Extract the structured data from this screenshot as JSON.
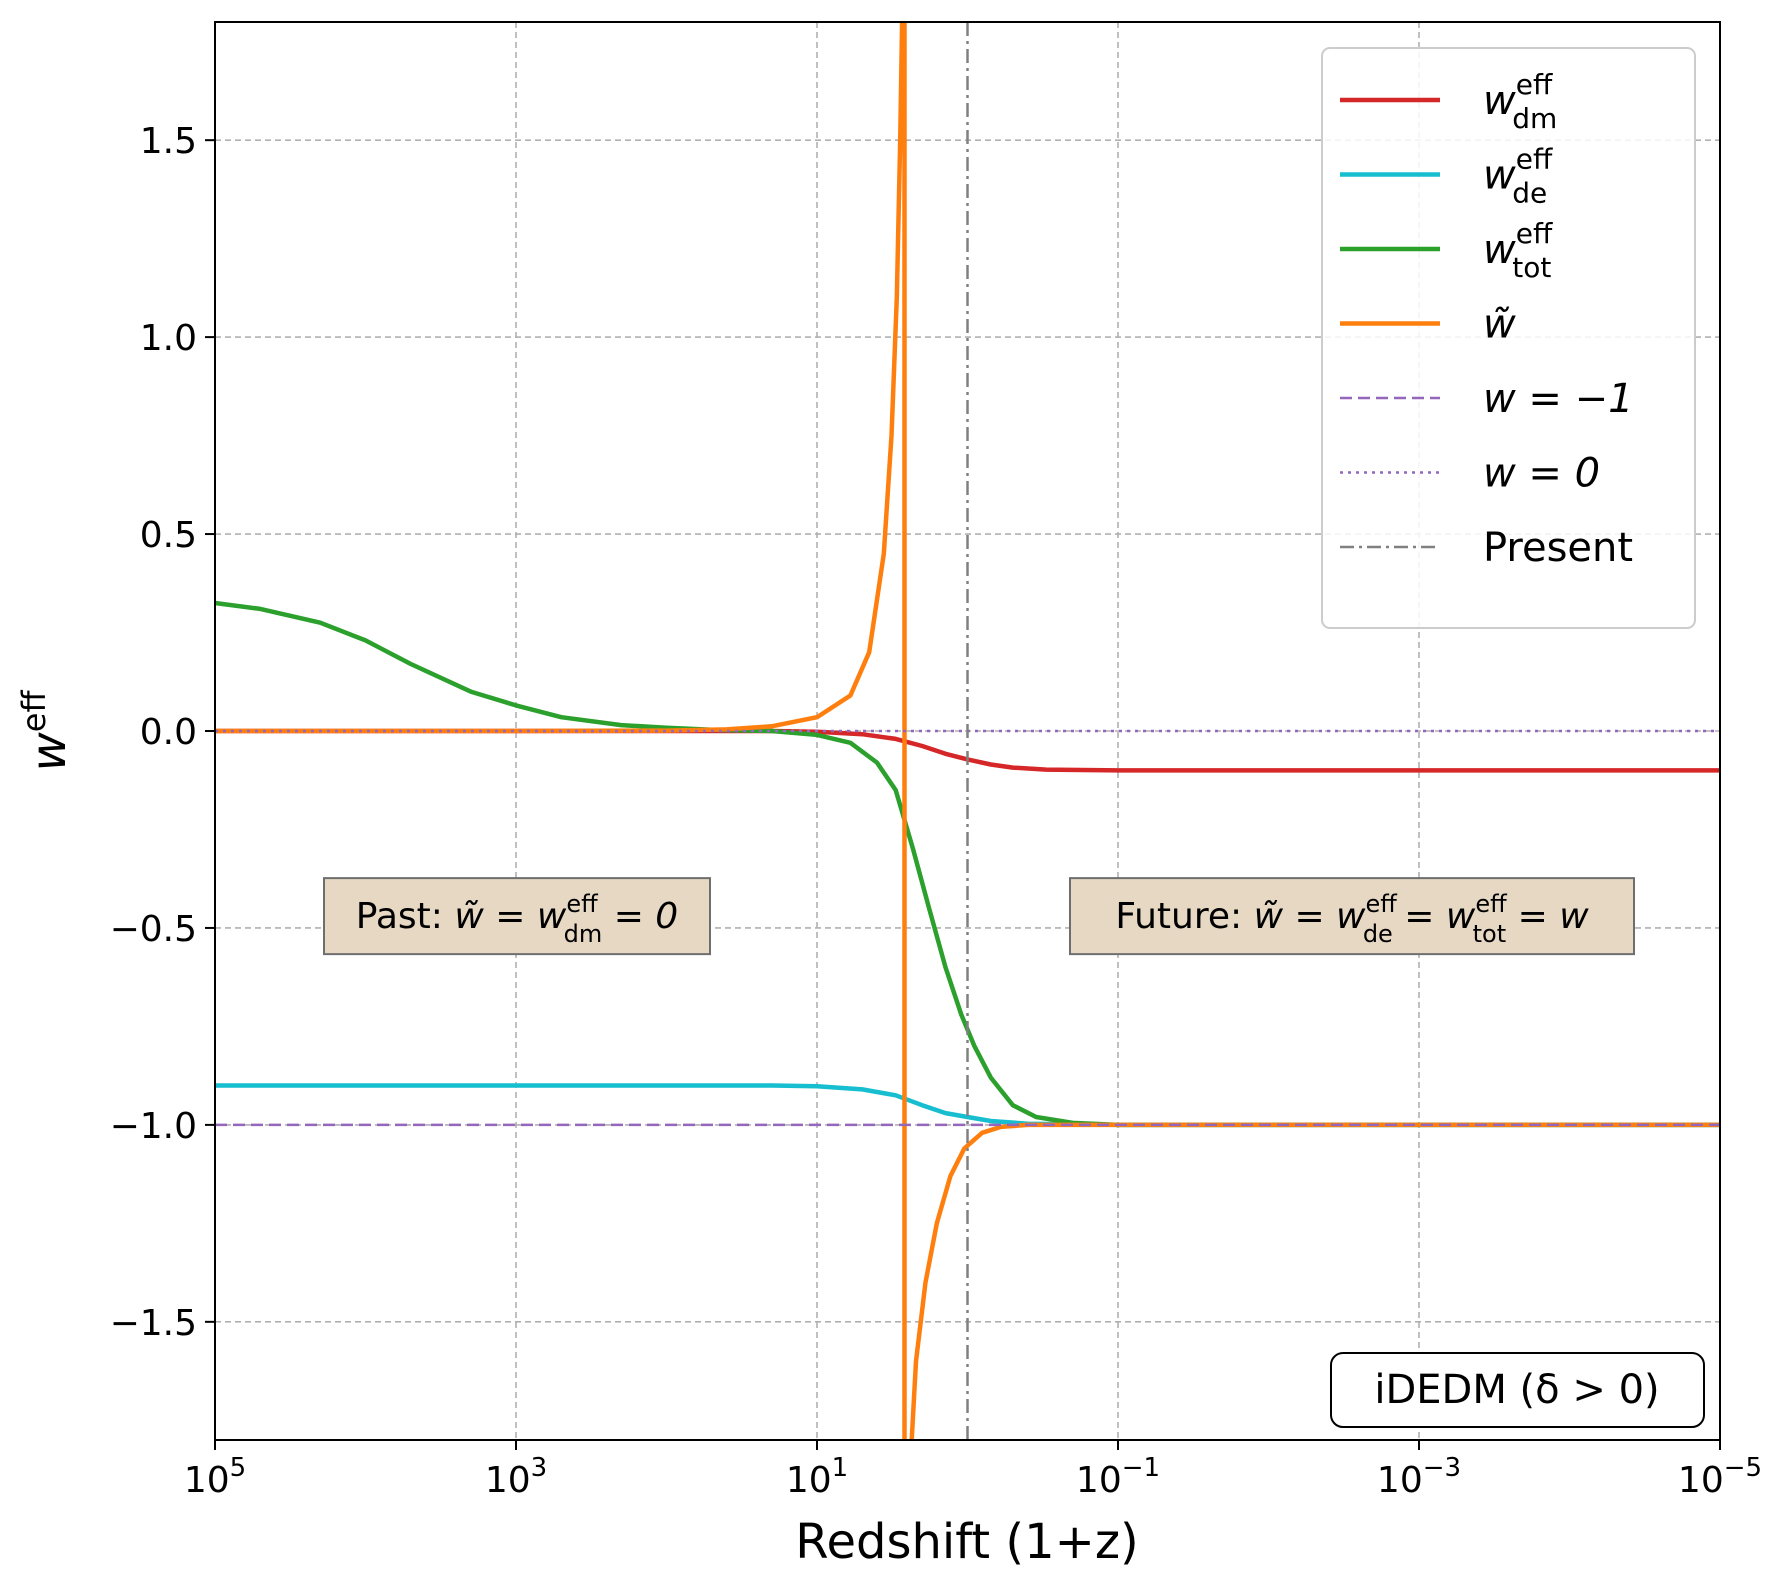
{
  "chart_data": {
    "type": "line",
    "x_axis": {
      "label": "Redshift (1+z)",
      "scale": "log",
      "reversed": true,
      "range": [
        100000,
        1e-05
      ],
      "ticks": [
        {
          "value": 100000,
          "base": "10",
          "exp": "5"
        },
        {
          "value": 1000,
          "base": "10",
          "exp": "3"
        },
        {
          "value": 10,
          "base": "10",
          "exp": "1"
        },
        {
          "value": 0.1,
          "base": "10",
          "exp": "−1"
        },
        {
          "value": 0.001,
          "base": "10",
          "exp": "−3"
        },
        {
          "value": 1e-05,
          "base": "10",
          "exp": "−5"
        }
      ]
    },
    "y_axis": {
      "label_base": "w",
      "label_sup": "eff",
      "range": [
        -1.8,
        1.8
      ],
      "ticks": [
        {
          "value": 1.5,
          "label": "1.5"
        },
        {
          "value": 1.0,
          "label": "1.0"
        },
        {
          "value": 0.5,
          "label": "0.5"
        },
        {
          "value": 0.0,
          "label": "0.0"
        },
        {
          "value": -0.5,
          "label": "−0.5"
        },
        {
          "value": -1.0,
          "label": "−1.0"
        },
        {
          "value": -1.5,
          "label": "−1.5"
        }
      ]
    },
    "grid": true,
    "legend_position": "top-right",
    "series": [
      {
        "key": "w_dm",
        "color": "#d62728",
        "style": "solid",
        "legend": {
          "base": "w",
          "sup": "eff",
          "sub": "dm"
        },
        "points": [
          [
            100000,
            0.0
          ],
          [
            1000,
            0.0
          ],
          [
            20,
            0.0
          ],
          [
            10,
            -0.002
          ],
          [
            5,
            -0.008
          ],
          [
            3,
            -0.02
          ],
          [
            2,
            -0.038
          ],
          [
            1.4,
            -0.058
          ],
          [
            1,
            -0.072
          ],
          [
            0.7,
            -0.085
          ],
          [
            0.5,
            -0.093
          ],
          [
            0.3,
            -0.098
          ],
          [
            0.1,
            -0.1
          ],
          [
            1e-05,
            -0.1
          ]
        ]
      },
      {
        "key": "w_de",
        "color": "#17becf",
        "style": "solid",
        "legend": {
          "base": "w",
          "sup": "eff",
          "sub": "de"
        },
        "points": [
          [
            100000,
            -0.9
          ],
          [
            100,
            -0.9
          ],
          [
            20,
            -0.9
          ],
          [
            10,
            -0.902
          ],
          [
            5,
            -0.91
          ],
          [
            3,
            -0.925
          ],
          [
            2,
            -0.95
          ],
          [
            1.4,
            -0.97
          ],
          [
            1,
            -0.98
          ],
          [
            0.7,
            -0.99
          ],
          [
            0.4,
            -0.997
          ],
          [
            0.1,
            -1.0
          ],
          [
            1e-05,
            -1.0
          ]
        ]
      },
      {
        "key": "w_tot",
        "color": "#2ca02c",
        "style": "solid",
        "legend": {
          "base": "w",
          "sup": "eff",
          "sub": "tot"
        },
        "points": [
          [
            100000,
            0.325
          ],
          [
            50000,
            0.31
          ],
          [
            20000,
            0.275
          ],
          [
            10000,
            0.23
          ],
          [
            5000,
            0.17
          ],
          [
            2000,
            0.1
          ],
          [
            1000,
            0.065
          ],
          [
            500,
            0.035
          ],
          [
            200,
            0.015
          ],
          [
            100,
            0.008
          ],
          [
            50,
            0.003
          ],
          [
            20,
            0.0
          ],
          [
            10,
            -0.01
          ],
          [
            6,
            -0.03
          ],
          [
            4,
            -0.08
          ],
          [
            3,
            -0.15
          ],
          [
            2.3,
            -0.3
          ],
          [
            1.8,
            -0.45
          ],
          [
            1.4,
            -0.6
          ],
          [
            1.1,
            -0.72
          ],
          [
            0.9,
            -0.8
          ],
          [
            0.7,
            -0.88
          ],
          [
            0.5,
            -0.95
          ],
          [
            0.35,
            -0.98
          ],
          [
            0.2,
            -0.995
          ],
          [
            0.1,
            -1.0
          ],
          [
            1e-05,
            -1.0
          ]
        ]
      },
      {
        "key": "w_tilde",
        "color": "#ff7f0e",
        "style": "solid",
        "legend": {
          "base": "w̃",
          "sup": "",
          "sub": ""
        },
        "branches": [
          [
            [
              100000,
              0.0
            ],
            [
              1000,
              0.0
            ],
            [
              100,
              0.001
            ],
            [
              40,
              0.004
            ],
            [
              20,
              0.012
            ],
            [
              10,
              0.035
            ],
            [
              6,
              0.09
            ],
            [
              4.5,
              0.2
            ],
            [
              3.6,
              0.45
            ],
            [
              3.2,
              0.75
            ],
            [
              2.95,
              1.1
            ],
            [
              2.8,
              1.5
            ],
            [
              2.72,
              1.8
            ]
          ],
          [
            [
              2.62,
              1.8
            ],
            [
              2.62,
              -1.8
            ]
          ],
          [
            [
              2.35,
              -1.8
            ],
            [
              2.2,
              -1.6
            ],
            [
              1.9,
              -1.4
            ],
            [
              1.6,
              -1.25
            ],
            [
              1.3,
              -1.13
            ],
            [
              1.05,
              -1.06
            ],
            [
              0.8,
              -1.02
            ],
            [
              0.6,
              -1.005
            ],
            [
              0.4,
              -1.0
            ],
            [
              0.1,
              -1.0
            ],
            [
              1e-05,
              -1.0
            ]
          ]
        ]
      },
      {
        "key": "w_minus1",
        "color": "#9467bd",
        "style": "dashed",
        "legend": {
          "base": "w = −1",
          "sup": "",
          "sub": ""
        },
        "points": [
          [
            100000,
            -1.0
          ],
          [
            1e-05,
            -1.0
          ]
        ]
      },
      {
        "key": "w_zero",
        "color": "#9467bd",
        "style": "dotted",
        "legend": {
          "base": "w = 0",
          "sup": "",
          "sub": ""
        },
        "points": [
          [
            100000,
            0.0
          ],
          [
            1e-05,
            0.0
          ]
        ]
      },
      {
        "key": "present",
        "color": "#808080",
        "style": "dashdot",
        "legend": {
          "base": "Present",
          "sup": "",
          "sub": ""
        },
        "vertical_x": 1
      }
    ],
    "annotations": [
      {
        "key": "past",
        "parts": [
          "Past: ",
          "w̃ = w",
          "eff",
          "dm",
          " = 0"
        ],
        "x": 300,
        "y": -0.47
      },
      {
        "key": "future",
        "parts": [
          "Future: ",
          "w̃ = w",
          "eff",
          "de",
          " = w",
          "eff",
          "tot",
          " = w"
        ],
        "x": 0.005,
        "y": -0.47
      }
    ],
    "model_label": "iDEDM (δ > 0)"
  }
}
